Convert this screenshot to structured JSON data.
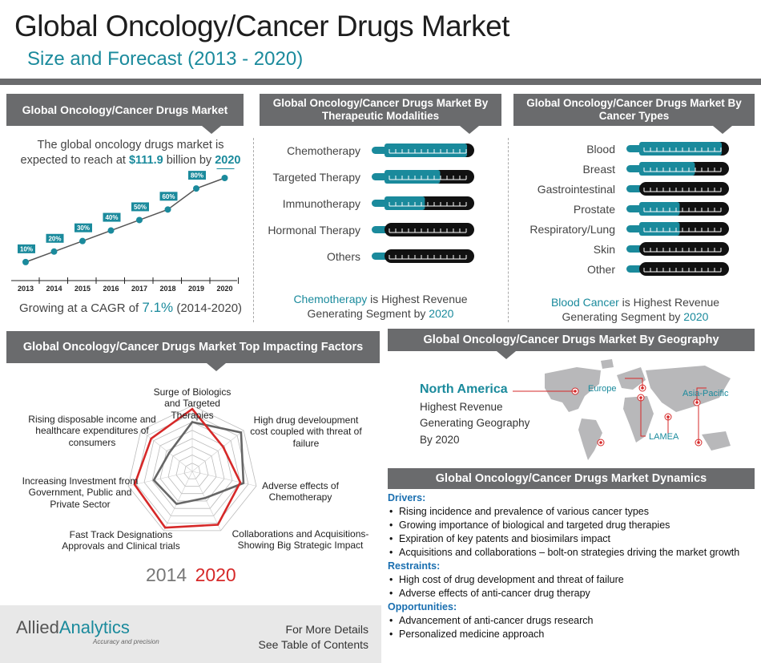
{
  "header": {
    "title": "Global Oncology/Cancer Drugs Market",
    "subtitle": "Size and Forecast (2013 - 2020)"
  },
  "market_panel": {
    "title": "Global Oncology/Cancer Drugs Market",
    "text_1": "The global oncology drugs market is",
    "text_2a": "expected to reach at ",
    "text_2b": "$111.9",
    "text_2c": " billion by ",
    "text_2d": "2020",
    "cagr_a": "Growing at a CAGR of ",
    "cagr_b": "7.1%",
    "cagr_c": " (2014-2020)"
  },
  "modalities_panel": {
    "title": "Global Oncology/Cancer Drugs Market By Therapeutic Modalities",
    "items": [
      {
        "label": "Chemotherapy",
        "level": 0.92
      },
      {
        "label": "Targeted Therapy",
        "level": 0.62
      },
      {
        "label": "Immunotherapy",
        "level": 0.45
      },
      {
        "label": "Hormonal Therapy",
        "level": 0.0
      },
      {
        "label": "Others",
        "level": 0.0
      }
    ],
    "note_a": "Chemotherapy",
    "note_b": " is Highest Revenue",
    "note_c": "Generating Segment by ",
    "note_d": "2020"
  },
  "cancer_types_panel": {
    "title": "Global Oncology/Cancer Drugs Market By Cancer Types",
    "items": [
      {
        "label": "Blood",
        "level": 0.92
      },
      {
        "label": "Breast",
        "level": 0.62
      },
      {
        "label": "Gastrointestinal",
        "level": 0.0
      },
      {
        "label": "Prostate",
        "level": 0.45
      },
      {
        "label": "Respiratory/Lung",
        "level": 0.45
      },
      {
        "label": "Skin",
        "level": 0.0
      },
      {
        "label": "Other",
        "level": 0.0
      }
    ],
    "note_a": "Blood Cancer",
    "note_b": " is Highest Revenue",
    "note_c": "Generating Segment by ",
    "note_d": "2020"
  },
  "factors_panel": {
    "title": "Global Oncology/Cancer Drugs Market Top Impacting Factors",
    "legend_2014": "2014",
    "legend_2020": "2020",
    "labels": [
      "Surge of Biologics and Targeted Therapies",
      "High drug develoupment cost coupled with threat of failure",
      "Adverse effects of Chemotherapy",
      "Collaborations and Acquisitions- Showing Big Strategic Impact",
      "Fast Track Designations Approvals and Clinical trials",
      "Increasing Investment from Government, Public and Private Sector",
      "Rising disposable income and healthcare expenditures of consumers"
    ]
  },
  "geography_panel": {
    "title": "Global Oncology/Cancer Drugs Market By Geography",
    "highlight": "North America",
    "line1": "Highest Revenue",
    "line2": "Generating Geography",
    "line3": "By 2020",
    "regions": [
      "Europe",
      "Asia-Pacific",
      "LAMEA"
    ]
  },
  "dynamics_panel": {
    "title": "Global Oncology/Cancer Drugs Market Dynamics",
    "drivers_label": "Drivers:",
    "drivers": [
      "Rising incidence and prevalence of various cancer types",
      "Growing importance of biological and targeted drug therapies",
      "Expiration of key patents and biosimilars impact",
      "Acquisitions and collaborations – bolt-on strategies driving the market growth"
    ],
    "restraints_label": "Restraints:",
    "restraints": [
      "High cost of drug development and threat of failure",
      "Adverse effects of anti-cancer drug therapy"
    ],
    "opportunities_label": "Opportunities:",
    "opportunities": [
      "Advancement of anti-cancer drugs research",
      "Personalized medicine approach"
    ]
  },
  "footer": {
    "brand_a": "Allied",
    "brand_b": "Analytics",
    "tagline": "Accuracy and precision",
    "more_1": "For More Details",
    "more_2": "See Table of Contents"
  },
  "colors": {
    "teal": "#1a8a9c",
    "banner": "#6a6b6d",
    "red": "#d62828",
    "dark": "#111111"
  },
  "chart_data": [
    {
      "type": "line",
      "x": [
        "2013",
        "2014",
        "2015",
        "2016",
        "2017",
        "2018",
        "2019",
        "2020"
      ],
      "series": [
        {
          "values": [
            10,
            20,
            30,
            40,
            50,
            60,
            80,
            90
          ]
        }
      ],
      "data_labels": [
        "10%",
        "20%",
        "30%",
        "40%",
        "50%",
        "60%",
        "80%",
        "90%"
      ]
    },
    {
      "type": "radar",
      "axes": [
        "Surge of Biologics and Targeted Therapies",
        "High drug develoupment cost coupled with threat of failure",
        "Adverse effects of Chemotherapy",
        "Collaborations and Acquisitions- Showing Big Strategic Impact",
        "Fast Track Designations Approvals and Clinical trials",
        "Increasing Investment from Government, Public and Private Sector",
        "Rising disposable income and healthcare expenditures of consumers"
      ],
      "series": [
        {
          "name": "2014",
          "values": [
            0.75,
            0.95,
            0.8,
            0.45,
            0.55,
            0.6,
            0.45
          ]
        },
        {
          "name": "2020",
          "values": [
            0.95,
            0.6,
            0.75,
            0.9,
            0.95,
            0.9,
            0.8
          ]
        }
      ]
    }
  ]
}
